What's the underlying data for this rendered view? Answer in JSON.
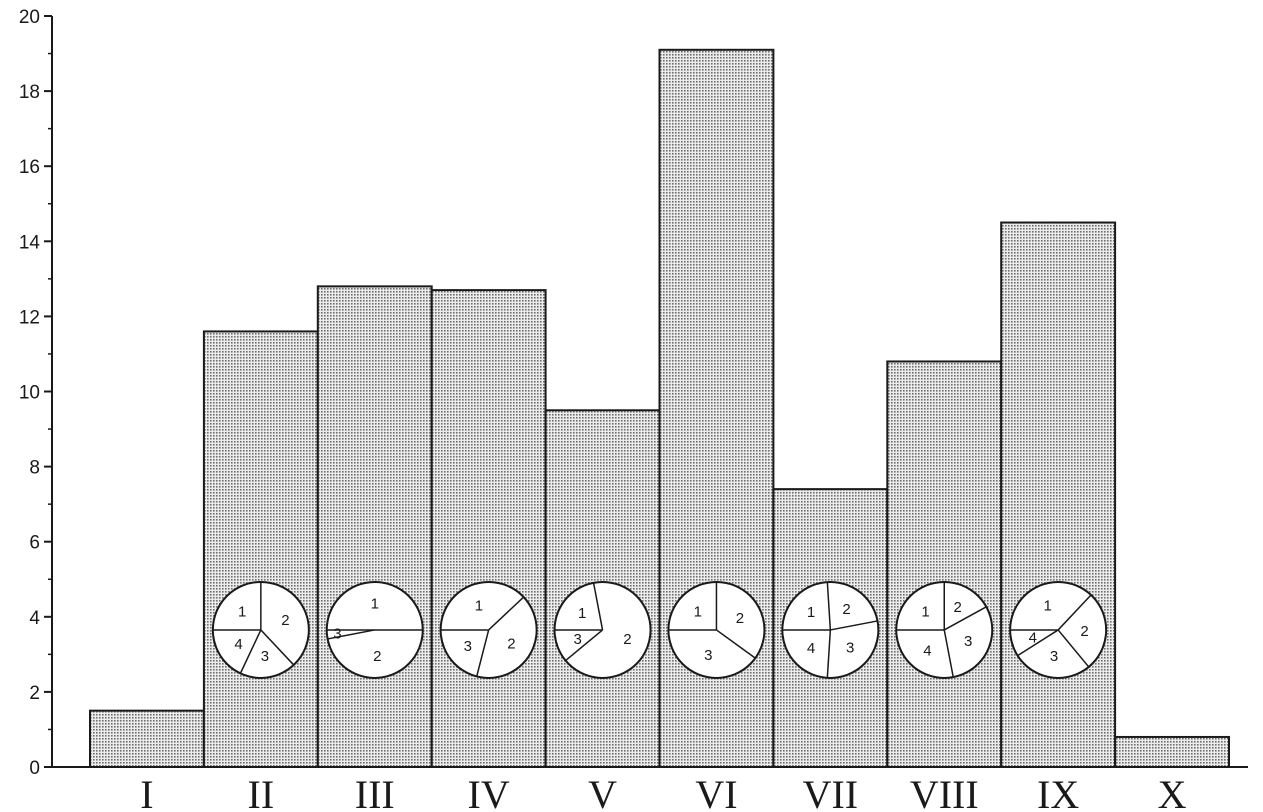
{
  "chart_data": {
    "type": "bar",
    "title": "",
    "xlabel": "",
    "ylabel": "",
    "ylim": [
      0,
      20
    ],
    "yticks": [
      "0",
      "2",
      "4",
      "6",
      "8",
      "10",
      "12",
      "14",
      "16",
      "18",
      "20"
    ],
    "categories": [
      "I",
      "II",
      "III",
      "IV",
      "V",
      "VI",
      "VII",
      "VIII",
      "IX",
      "X"
    ],
    "values": [
      1.5,
      11.6,
      12.8,
      12.7,
      9.5,
      19.1,
      7.4,
      10.8,
      14.5,
      0.8
    ],
    "grid": false,
    "legend": "none",
    "bar_fill": "#d4d4d4",
    "bar_stroke": "#1a1a1a",
    "pie_insets": {
      "II": [
        {
          "label": "1",
          "share": 0.25
        },
        {
          "label": "2",
          "share": 0.38
        },
        {
          "label": "3",
          "share": 0.19
        },
        {
          "label": "4",
          "share": 0.18
        }
      ],
      "III": [
        {
          "label": "1",
          "share": 0.5
        },
        {
          "label": "2",
          "share": 0.47
        },
        {
          "label": "3",
          "share": 0.03
        }
      ],
      "IV": [
        {
          "label": "1",
          "share": 0.38
        },
        {
          "label": "2",
          "share": 0.41
        },
        {
          "label": "3",
          "share": 0.21
        }
      ],
      "V": [
        {
          "label": "1",
          "share": 0.22
        },
        {
          "label": "2",
          "share": 0.67
        },
        {
          "label": "3",
          "share": 0.11
        }
      ],
      "VI": [
        {
          "label": "1",
          "share": 0.25
        },
        {
          "label": "2",
          "share": 0.35
        },
        {
          "label": "3",
          "share": 0.4
        }
      ],
      "VII": [
        {
          "label": "1",
          "share": 0.24
        },
        {
          "label": "2",
          "share": 0.23
        },
        {
          "label": "3",
          "share": 0.29
        },
        {
          "label": "4",
          "share": 0.24
        }
      ],
      "VIII": [
        {
          "label": "1",
          "share": 0.25
        },
        {
          "label": "2",
          "share": 0.17
        },
        {
          "label": "3",
          "share": 0.3
        },
        {
          "label": "4",
          "share": 0.28
        }
      ],
      "IX": [
        {
          "label": "1",
          "share": 0.37
        },
        {
          "label": "2",
          "share": 0.27
        },
        {
          "label": "3",
          "share": 0.27
        },
        {
          "label": "4",
          "share": 0.09
        }
      ]
    }
  }
}
